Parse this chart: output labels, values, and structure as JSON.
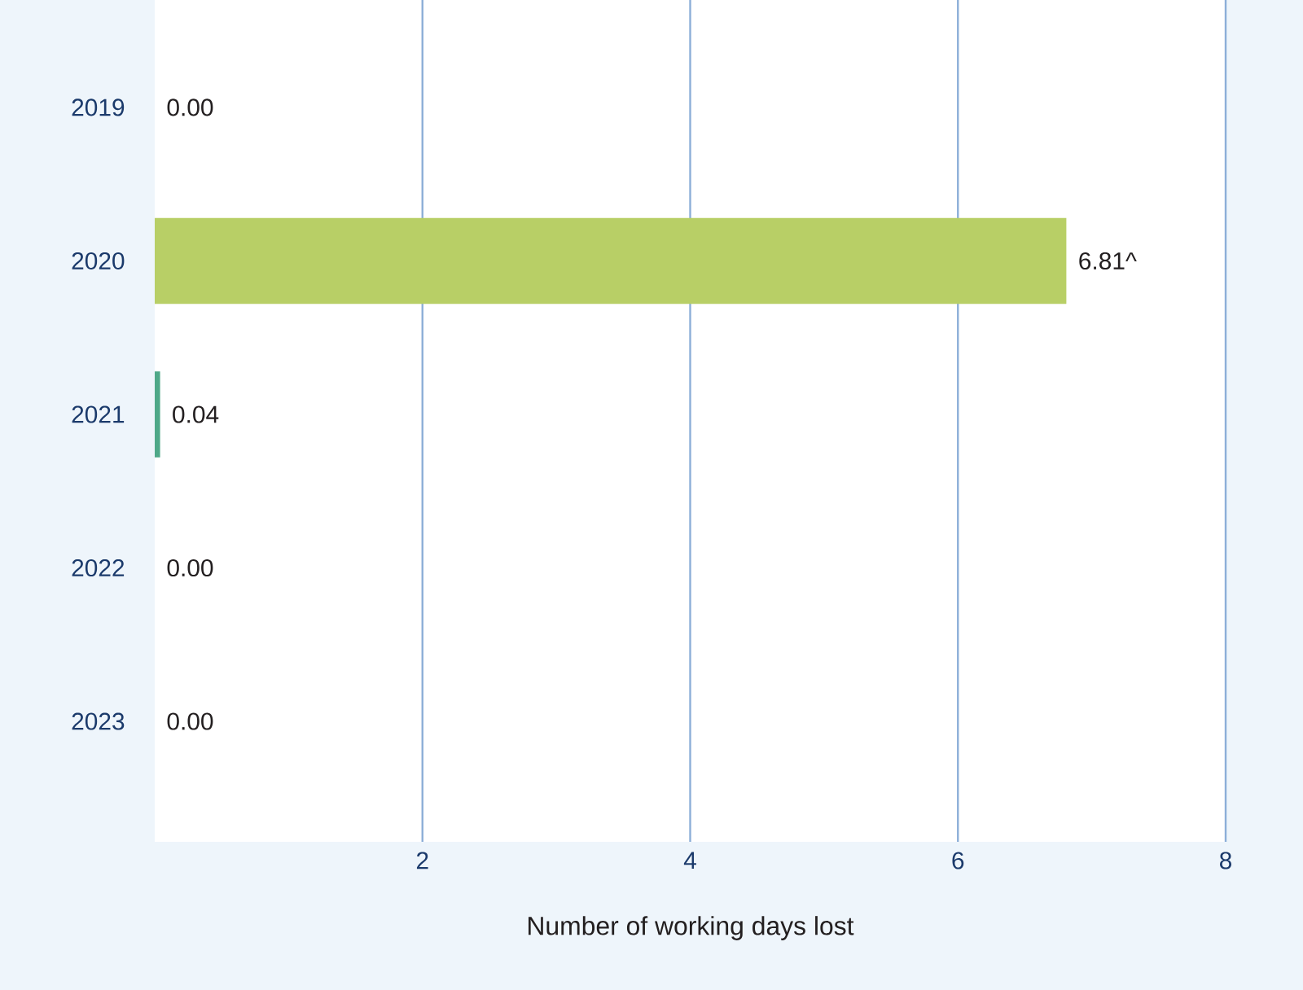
{
  "chart_data": {
    "type": "bar",
    "orientation": "horizontal",
    "categories": [
      "2019",
      "2020",
      "2021",
      "2022",
      "2023"
    ],
    "values": [
      0,
      6.81,
      0.04,
      0,
      0
    ],
    "value_labels": [
      "0.00",
      "6.81^",
      "0.04",
      "0.00",
      "0.00"
    ],
    "colors": [
      "#4ea888",
      "#b8cf66",
      "#4ea888",
      "#4ea888",
      "#4ea888"
    ],
    "xlabel": "Number of working days lost",
    "xlim": [
      0,
      8
    ],
    "xticks": [
      2,
      4,
      6,
      8
    ],
    "grid": "x"
  }
}
